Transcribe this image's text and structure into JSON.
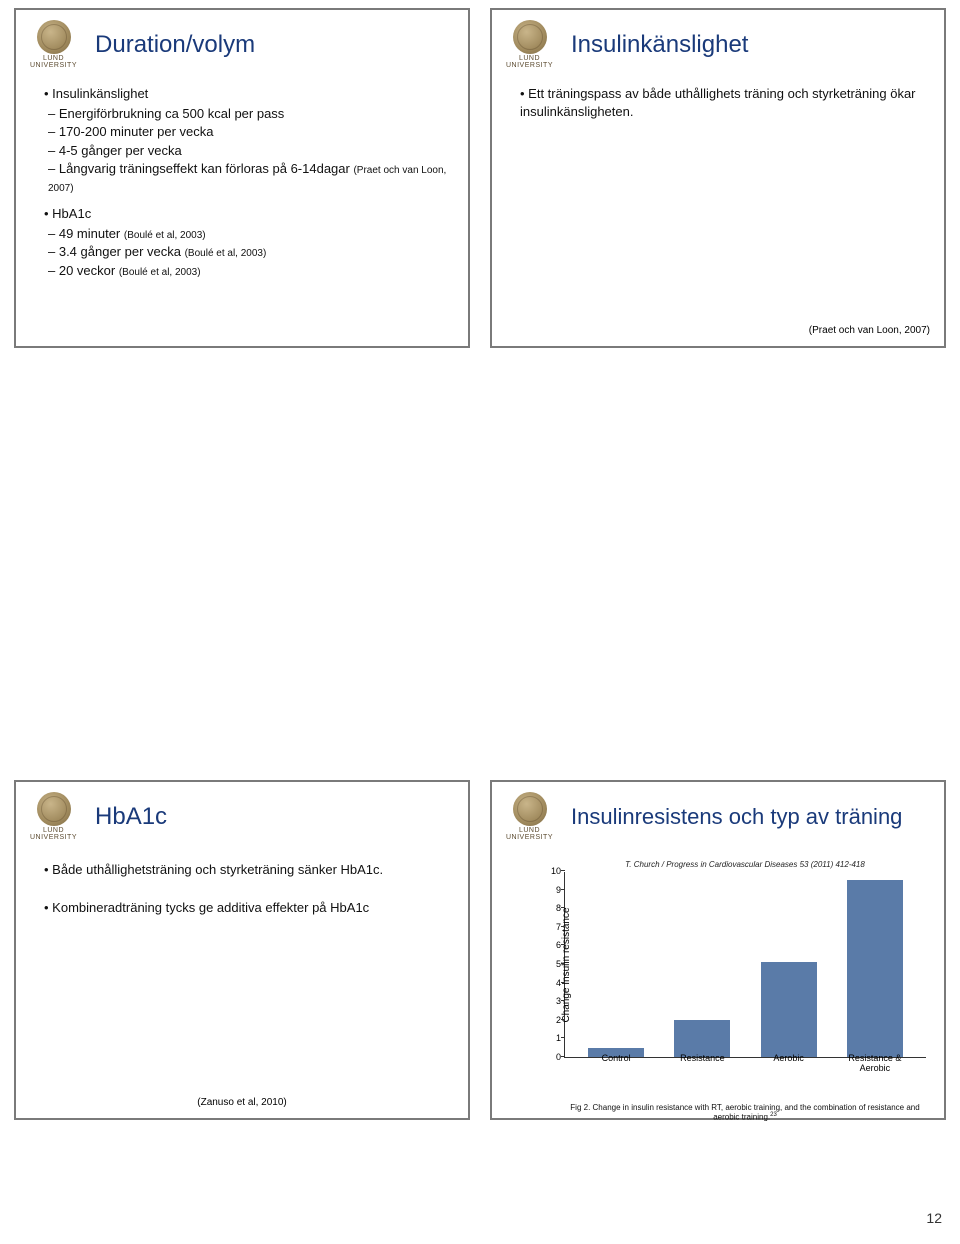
{
  "logo": {
    "line1": "LUND",
    "line2": "UNIVERSITY"
  },
  "slide1": {
    "title": "Duration/volym",
    "bullet1": "Insulinkänslighet",
    "sub1a": "Energiförbrukning ca 500 kcal per pass",
    "sub1b": "170-200 minuter per vecka",
    "sub1c": "4-5 gånger per vecka",
    "sub1d_text": "Långvarig träningseffekt kan förloras på 6-14dagar ",
    "sub1d_cite": "(Praet och van Loon, 2007)",
    "bullet2": "HbA1c",
    "sub2a_text": "49 minuter ",
    "sub2a_cite": "(Boulé et al, 2003)",
    "sub2b_text": "3.4 gånger per vecka ",
    "sub2b_cite": "(Boulé et al, 2003)",
    "sub2c_text": "20 veckor ",
    "sub2c_cite": "(Boulé et al, 2003)"
  },
  "slide2": {
    "title": "Insulinkänslighet",
    "bullet": "Ett träningspass av både uthållighets träning och styrketräning ökar insulinkänsligheten.",
    "footer": "(Praet och van Loon, 2007)"
  },
  "slide5": {
    "title": "HbA1c",
    "bullet1": "Både uthållighetsträning och styrketräning sänker HbA1c.",
    "bullet2": "Kombineradträning tycks ge additiva effekter på HbA1c",
    "footer": "(Zanuso et al, 2010)"
  },
  "slide6": {
    "title": "Insulinresistens och typ av träning",
    "top_cite": "T. Church / Progress in Cardiovascular Diseases 53 (2011) 412-418",
    "ylabel": "Change Insulin resistance",
    "ylim": [
      0,
      10
    ],
    "yticks": [
      0,
      1,
      2,
      3,
      4,
      5,
      6,
      7,
      8,
      9,
      10
    ],
    "categories": [
      "Control",
      "Resistance",
      "Aerobic",
      "Resistance & Aerobic"
    ],
    "values": [
      0.5,
      2.0,
      5.1,
      9.5
    ],
    "bar_color": "#5a7ba8",
    "caption": "Fig 2. Change in insulin resistance with RT, aerobic training, and the combination of resistance and aerobic training."
  },
  "page_number": "12"
}
